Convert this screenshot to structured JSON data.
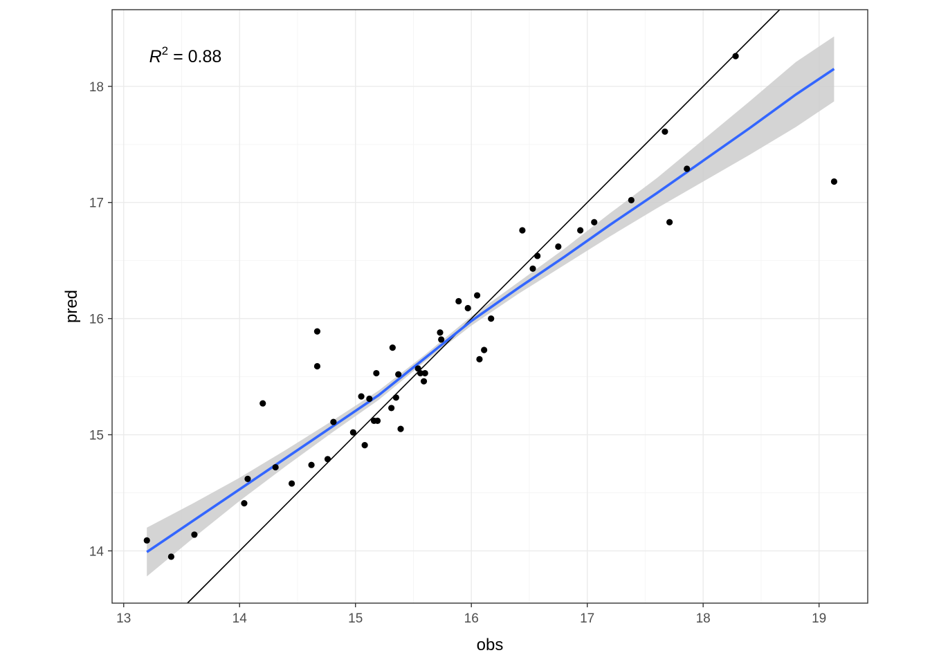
{
  "chart_data": {
    "type": "scatter",
    "xlabel": "obs",
    "ylabel": "pred",
    "xlim": [
      12.9,
      19.42
    ],
    "ylim": [
      13.55,
      18.66
    ],
    "x_ticks": [
      13,
      14,
      15,
      16,
      17,
      18,
      19
    ],
    "y_ticks": [
      14,
      15,
      16,
      17,
      18
    ],
    "x_tick_labels": [
      "13",
      "14",
      "15",
      "16",
      "17",
      "18",
      "19"
    ],
    "y_tick_labels": [
      "14",
      "15",
      "16",
      "17",
      "18"
    ],
    "grid": true,
    "annotation": {
      "var": "R",
      "sup": "2",
      "rest": " = 0.88",
      "x": 13.22,
      "y": 18.26
    },
    "points": [
      {
        "x": 13.2,
        "y": 14.09
      },
      {
        "x": 13.41,
        "y": 13.95
      },
      {
        "x": 13.61,
        "y": 14.14
      },
      {
        "x": 14.04,
        "y": 14.41
      },
      {
        "x": 14.07,
        "y": 14.62
      },
      {
        "x": 14.2,
        "y": 15.27
      },
      {
        "x": 14.31,
        "y": 14.72
      },
      {
        "x": 14.45,
        "y": 14.58
      },
      {
        "x": 14.62,
        "y": 14.74
      },
      {
        "x": 14.67,
        "y": 15.59
      },
      {
        "x": 14.67,
        "y": 15.89
      },
      {
        "x": 14.76,
        "y": 14.79
      },
      {
        "x": 14.81,
        "y": 15.11
      },
      {
        "x": 14.98,
        "y": 15.02
      },
      {
        "x": 15.05,
        "y": 15.33
      },
      {
        "x": 15.08,
        "y": 14.91
      },
      {
        "x": 15.12,
        "y": 15.31
      },
      {
        "x": 15.16,
        "y": 15.12
      },
      {
        "x": 15.19,
        "y": 15.12
      },
      {
        "x": 15.18,
        "y": 15.53
      },
      {
        "x": 15.31,
        "y": 15.23
      },
      {
        "x": 15.32,
        "y": 15.75
      },
      {
        "x": 15.35,
        "y": 15.32
      },
      {
        "x": 15.37,
        "y": 15.52
      },
      {
        "x": 15.39,
        "y": 15.05
      },
      {
        "x": 15.54,
        "y": 15.57
      },
      {
        "x": 15.56,
        "y": 15.53
      },
      {
        "x": 15.59,
        "y": 15.46
      },
      {
        "x": 15.6,
        "y": 15.53
      },
      {
        "x": 15.73,
        "y": 15.88
      },
      {
        "x": 15.74,
        "y": 15.82
      },
      {
        "x": 15.89,
        "y": 16.15
      },
      {
        "x": 15.97,
        "y": 16.09
      },
      {
        "x": 16.05,
        "y": 16.2
      },
      {
        "x": 16.07,
        "y": 15.65
      },
      {
        "x": 16.11,
        "y": 15.73
      },
      {
        "x": 16.17,
        "y": 16.0
      },
      {
        "x": 16.44,
        "y": 16.76
      },
      {
        "x": 16.53,
        "y": 16.43
      },
      {
        "x": 16.57,
        "y": 16.54
      },
      {
        "x": 16.75,
        "y": 16.62
      },
      {
        "x": 16.94,
        "y": 16.76
      },
      {
        "x": 17.06,
        "y": 16.83
      },
      {
        "x": 17.38,
        "y": 17.02
      },
      {
        "x": 17.67,
        "y": 17.61
      },
      {
        "x": 17.71,
        "y": 16.83
      },
      {
        "x": 17.86,
        "y": 17.29
      },
      {
        "x": 18.28,
        "y": 18.26
      },
      {
        "x": 19.13,
        "y": 17.18
      }
    ],
    "reference_line": {
      "slope": 1,
      "intercept": 0
    },
    "smooth": {
      "x": [
        13.2,
        13.6,
        14.0,
        14.4,
        14.8,
        15.2,
        15.6,
        16.0,
        16.4,
        16.8,
        17.2,
        17.6,
        18.0,
        18.4,
        18.8,
        19.13
      ],
      "y": [
        13.99,
        14.26,
        14.53,
        14.8,
        15.07,
        15.34,
        15.66,
        15.98,
        16.26,
        16.53,
        16.81,
        17.08,
        17.36,
        17.64,
        17.93,
        18.15
      ],
      "lower": [
        13.78,
        14.11,
        14.43,
        14.73,
        15.02,
        15.3,
        15.63,
        15.94,
        16.21,
        16.46,
        16.71,
        16.95,
        17.18,
        17.41,
        17.65,
        17.87
      ],
      "upper": [
        14.2,
        14.41,
        14.63,
        14.87,
        15.12,
        15.38,
        15.69,
        16.02,
        16.31,
        16.6,
        16.91,
        17.21,
        17.54,
        17.87,
        18.21,
        18.43
      ]
    },
    "colors": {
      "panel_border": "#333333",
      "grid_major": "#ebebeb",
      "grid_minor": "#f5f5f5",
      "points": "#000000",
      "smooth_line": "#3366ff",
      "ribbon": "#cccccc",
      "reference_line": "#000000"
    }
  }
}
